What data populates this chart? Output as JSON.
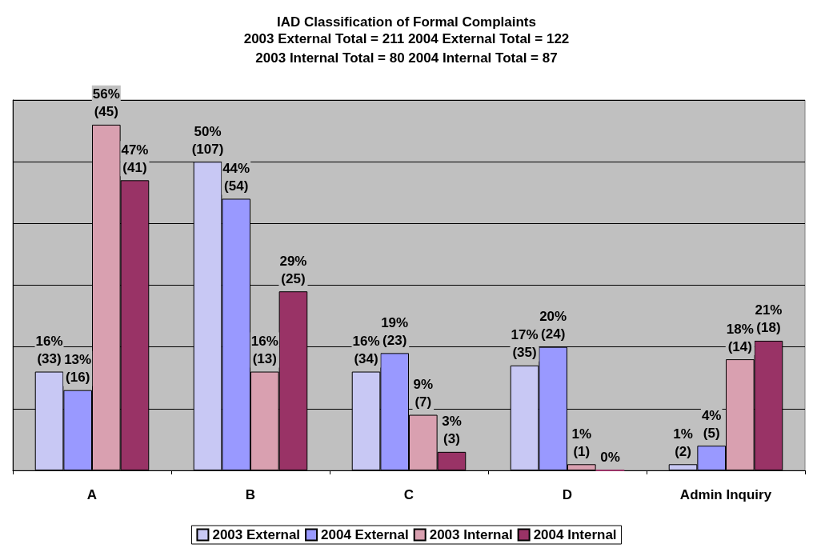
{
  "chart_data": {
    "type": "bar",
    "title": "IAD Classification of Formal Complaints",
    "subtitle": "2003 External Total = 211 2004 External Total = 122\n2003 Internal Total = 80 2004 Internal Total = 87",
    "categories": [
      "A",
      "B",
      "C",
      "D",
      "Admin Inquiry"
    ],
    "series": [
      {
        "name": "2003 External",
        "color": "#c8c8f4",
        "values": [
          16,
          50,
          16,
          17,
          1
        ],
        "value_labels": [
          "16%\n(33)",
          "50%\n(107)",
          "16%\n(34)",
          "17%\n(35)",
          "1%\n(2)"
        ]
      },
      {
        "name": "2004 External",
        "color": "#9999ff",
        "values": [
          13,
          44,
          19,
          20,
          4
        ],
        "value_labels": [
          "13%\n(16)",
          "44%\n(54)",
          "19%\n(23)",
          "20%\n(24)",
          "4%\n(5)"
        ]
      },
      {
        "name": "2003 Internal",
        "color": "#d9a0b0",
        "values": [
          56,
          16,
          9,
          1,
          18
        ],
        "value_labels": [
          "56%\n(45)",
          "16%\n(13)",
          "9%\n(7)",
          "1%\n(1)",
          "18%\n(14)"
        ]
      },
      {
        "name": "2004 Internal",
        "color": "#993366",
        "values": [
          47,
          29,
          3,
          0,
          21
        ],
        "value_labels": [
          "47%\n(41)",
          "29%\n(25)",
          "3%\n(3)",
          "0%",
          "21%\n(18)"
        ]
      }
    ],
    "ylim": [
      0,
      60
    ],
    "yticks": [
      {
        "value": 0,
        "label": null
      },
      {
        "value": 10,
        "label": null
      },
      {
        "value": 20,
        "label": null
      },
      {
        "value": 30,
        "label": null
      },
      {
        "value": 40,
        "label": null
      },
      {
        "value": 50,
        "label": null
      },
      {
        "value": 60,
        "label": null
      }
    ],
    "tick_labels": "x",
    "grid": "y",
    "legend": "bottom"
  }
}
